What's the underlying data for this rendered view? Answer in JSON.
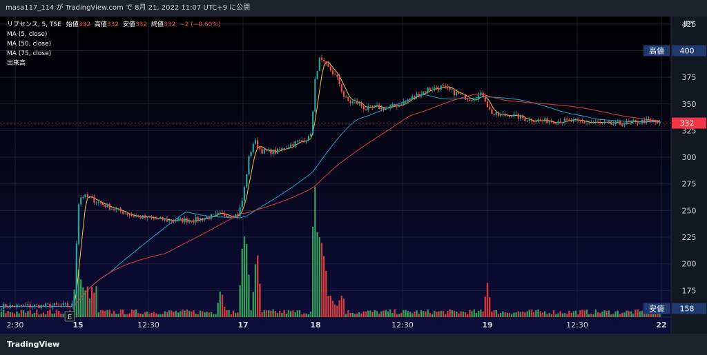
{
  "header": {
    "share_text": "masa117_114 が TradingView.com で 8月 21, 2022 11:07 UTC+9 に公開"
  },
  "footer": {
    "logo_label": "TradingView"
  },
  "legend": {
    "ohlc_prefix": "リブセンス, 5, TSE",
    "open_label": "始値",
    "open_value": "332",
    "high_label": "高値",
    "high_value": "332",
    "low_label": "安値",
    "low_value": "332",
    "close_label": "終値",
    "close_value": "332",
    "change": "−2 (−0.60%)",
    "ma5": "MA (5, close)",
    "ma50": "MA (50, close)",
    "ma75": "MA (75, close)",
    "volume": "出来高"
  },
  "colors": {
    "background": "#0d0d3a",
    "up": "#26a69a",
    "down": "#ef5350",
    "ma5": "#f5c842",
    "ma50": "#1ea7c9",
    "ma75": "#e0403f",
    "current_price": "#f23645",
    "high_low_badge": "#1e3a6e"
  },
  "chart_data": {
    "type": "candlestick",
    "currency": "JPY",
    "interval": "5",
    "y_ticks": [
      175,
      200,
      225,
      250,
      275,
      300,
      325,
      350,
      375,
      400,
      425
    ],
    "ylim": [
      150,
      432
    ],
    "x_ticks": [
      "2:30",
      "15",
      "12:30",
      "17",
      "18",
      "12:30",
      "19",
      "12:30",
      "22"
    ],
    "current_price": 332,
    "high_marker": {
      "label": "高値",
      "value": 400
    },
    "low_marker": {
      "label": "安値",
      "value": 158
    },
    "session_markers": [
      "E"
    ],
    "price_anchors": [
      [
        0,
        160
      ],
      [
        100,
        161
      ],
      [
        107,
        161
      ],
      [
        113,
        255
      ],
      [
        118,
        264
      ],
      [
        128,
        262
      ],
      [
        145,
        257
      ],
      [
        170,
        250
      ],
      [
        200,
        244
      ],
      [
        240,
        241
      ],
      [
        280,
        241
      ],
      [
        318,
        246
      ],
      [
        345,
        246
      ],
      [
        352,
        262
      ],
      [
        360,
        298
      ],
      [
        368,
        316
      ],
      [
        378,
        306
      ],
      [
        400,
        305
      ],
      [
        425,
        313
      ],
      [
        448,
        318
      ],
      [
        452,
        330
      ],
      [
        456,
        370
      ],
      [
        462,
        392
      ],
      [
        470,
        387
      ],
      [
        480,
        381
      ],
      [
        490,
        372
      ],
      [
        498,
        357
      ],
      [
        505,
        352
      ],
      [
        515,
        352
      ],
      [
        530,
        345
      ],
      [
        545,
        347
      ],
      [
        560,
        346
      ],
      [
        580,
        350
      ],
      [
        600,
        357
      ],
      [
        620,
        364
      ],
      [
        640,
        366
      ],
      [
        660,
        360
      ],
      [
        680,
        355
      ],
      [
        700,
        359
      ],
      [
        708,
        345
      ],
      [
        715,
        340
      ],
      [
        725,
        339
      ],
      [
        740,
        340
      ],
      [
        760,
        336
      ],
      [
        790,
        334
      ],
      [
        820,
        334
      ],
      [
        850,
        333
      ],
      [
        880,
        331
      ],
      [
        910,
        332
      ],
      [
        935,
        334
      ],
      [
        956,
        332
      ]
    ],
    "volume_spikes": [
      [
        112,
        0.35
      ],
      [
        118,
        0.24
      ],
      [
        134,
        0.18
      ],
      [
        320,
        0.17
      ],
      [
        353,
        0.52
      ],
      [
        357,
        0.42
      ],
      [
        372,
        0.4
      ],
      [
        456,
        0.78
      ],
      [
        461,
        0.58
      ],
      [
        465,
        0.48
      ],
      [
        470,
        0.38
      ],
      [
        706,
        0.19
      ],
      [
        456,
        0.78
      ]
    ]
  }
}
